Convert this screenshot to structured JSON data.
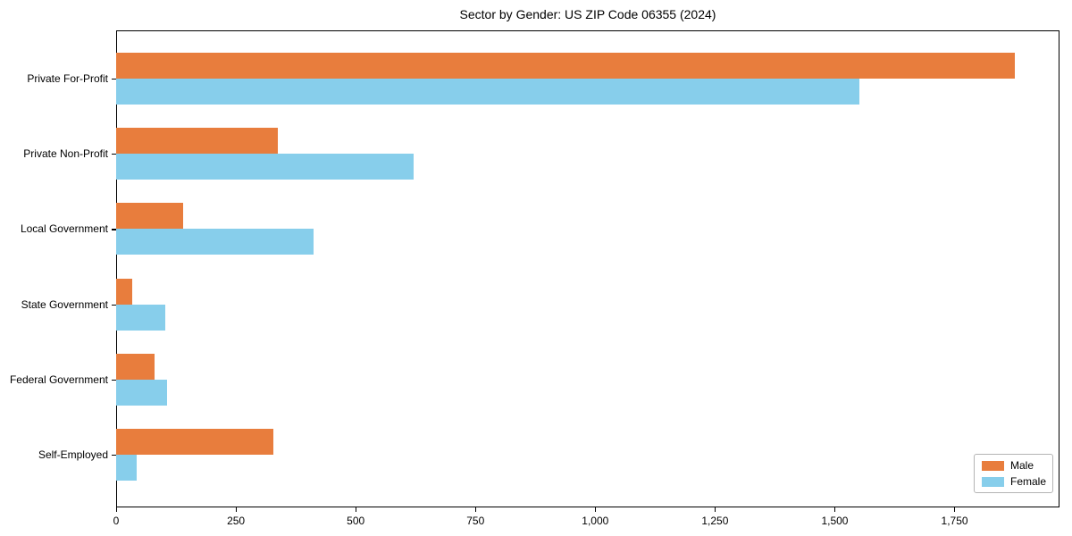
{
  "chart_data": {
    "type": "bar",
    "orientation": "horizontal",
    "title": "Sector by Gender: US ZIP Code 06355 (2024)",
    "categories": [
      "Private For-Profit",
      "Private Non-Profit",
      "Local Government",
      "State Government",
      "Federal Government",
      "Self-Employed"
    ],
    "series": [
      {
        "name": "Male",
        "color": "#e87d3d",
        "values": [
          1875,
          338,
          140,
          34,
          80,
          328
        ]
      },
      {
        "name": "Female",
        "color": "#87ceeb",
        "values": [
          1552,
          621,
          412,
          103,
          106,
          43
        ]
      }
    ],
    "xlabel": "",
    "ylabel": "",
    "xlim": [
      0,
      1969
    ],
    "xticks": [
      0,
      250,
      500,
      750,
      1000,
      1250,
      1500,
      1750
    ],
    "xtick_labels": [
      "0",
      "250",
      "500",
      "750",
      "1,000",
      "1,250",
      "1,500",
      "1,750"
    ],
    "grid": false,
    "legend_position": "lower right",
    "axis_color": "#000000",
    "background_color": "#ffffff"
  }
}
